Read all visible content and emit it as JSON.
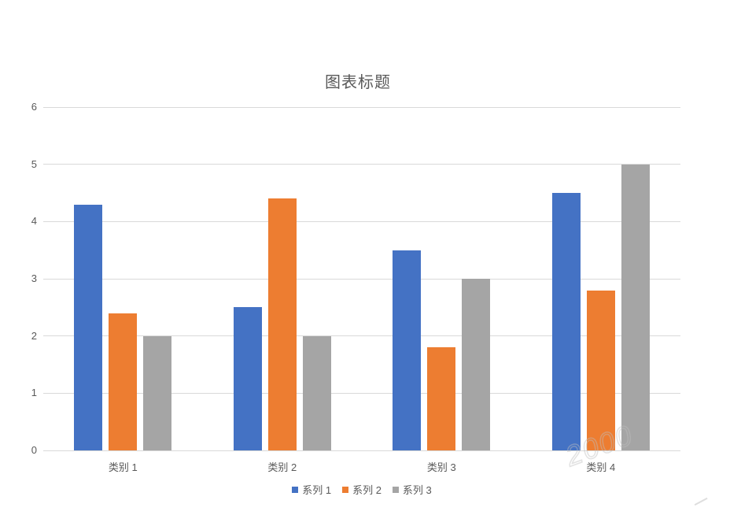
{
  "page": {
    "background_color": "#ffffff",
    "text_color": "#595959",
    "gridline_color": "#d9d9d9"
  },
  "chart_data": {
    "type": "bar",
    "title": "图表标题",
    "categories": [
      "类别 1",
      "类别 2",
      "类别 3",
      "类别 4"
    ],
    "series": [
      {
        "name": "系列 1",
        "color": "#4472C4",
        "values": [
          4.3,
          2.5,
          3.5,
          4.5
        ]
      },
      {
        "name": "系列 2",
        "color": "#ED7D31",
        "values": [
          2.4,
          4.4,
          1.8,
          2.8
        ]
      },
      {
        "name": "系列 3",
        "color": "#A5A5A5",
        "values": [
          2.0,
          2.0,
          3.0,
          5.0
        ]
      }
    ],
    "xlabel": "",
    "ylabel": "",
    "y_axis": {
      "min": 0,
      "max": 6,
      "step": 1,
      "ticks": [
        "0",
        "1",
        "2",
        "3",
        "4",
        "5",
        "6"
      ]
    },
    "grid": true,
    "legend_position": "bottom"
  },
  "watermark": {
    "text": "2000"
  }
}
